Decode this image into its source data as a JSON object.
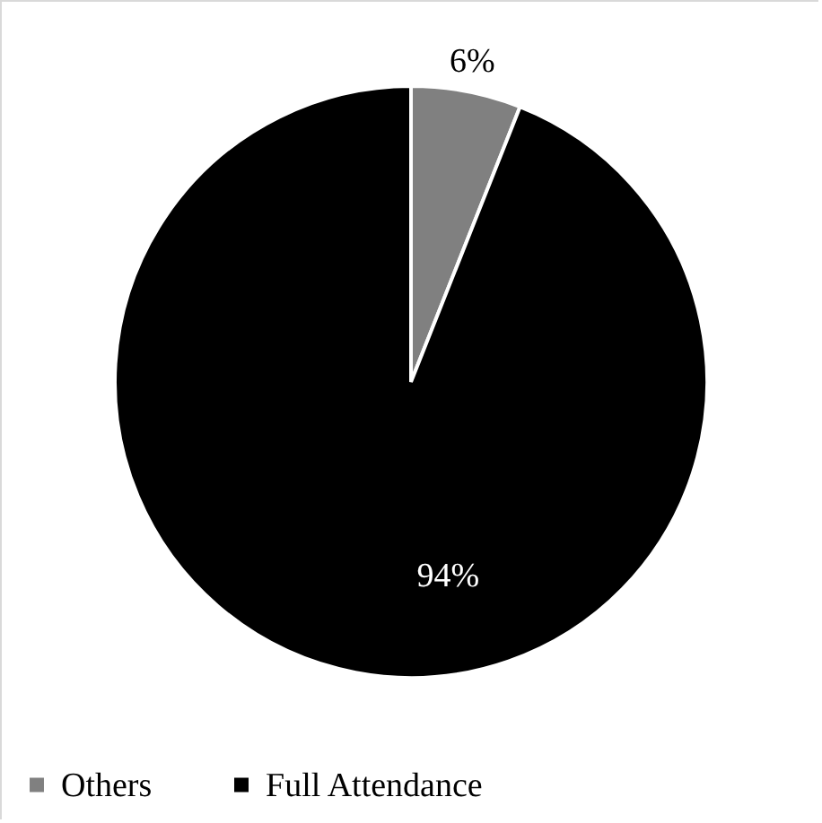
{
  "chart_data": {
    "type": "pie",
    "categories": [
      "Others",
      "Full Attendance"
    ],
    "values": [
      6,
      94
    ],
    "colors": [
      "#808080",
      "#000000"
    ],
    "value_labels": [
      "6%",
      "94%"
    ],
    "legend": "bottom"
  }
}
